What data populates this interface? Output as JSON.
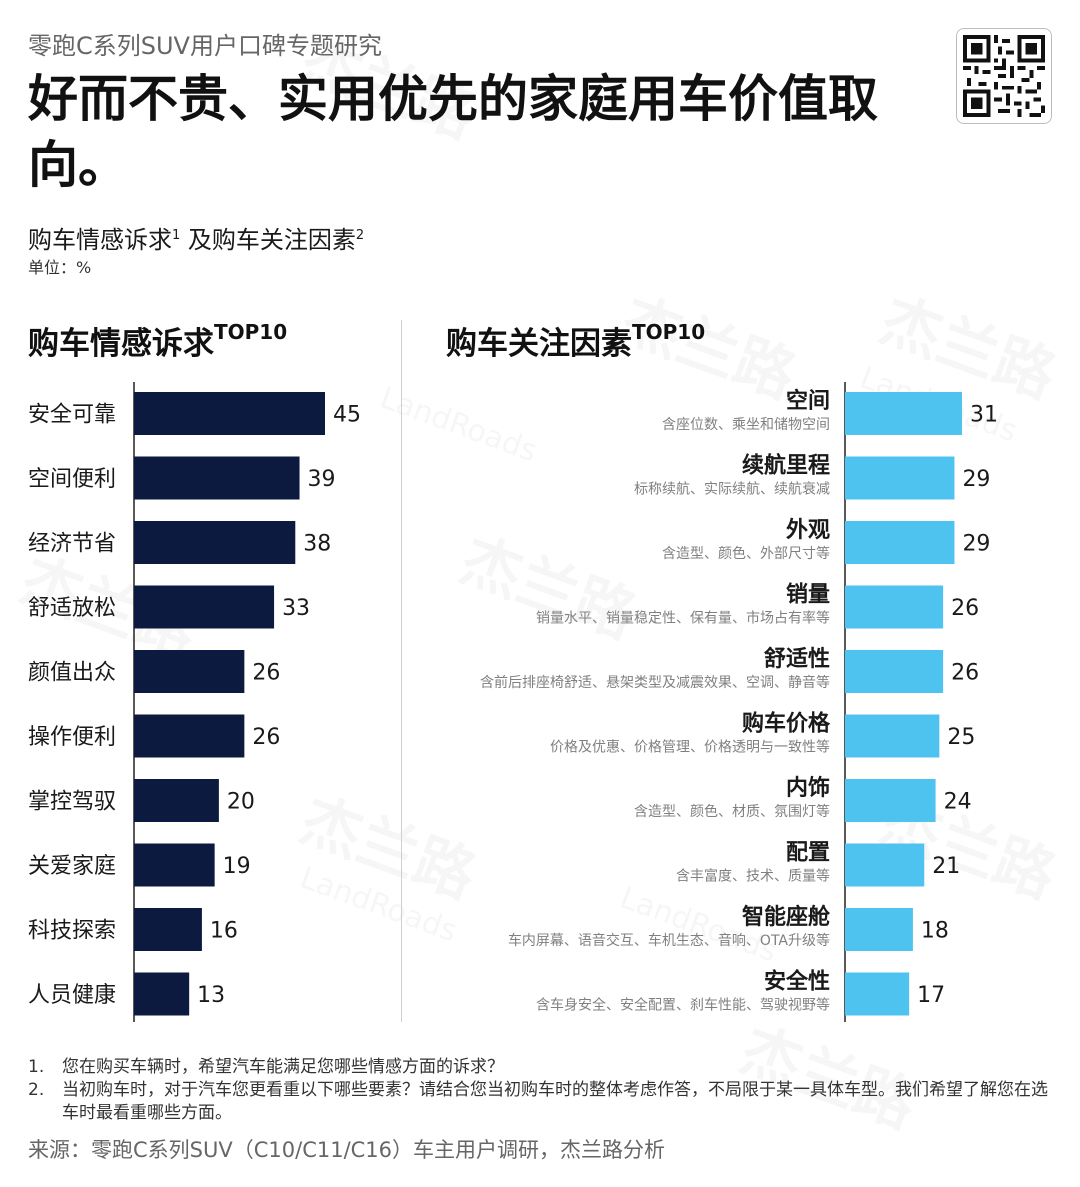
{
  "header": {
    "series_title": "零跑C系列SUV用户口碑专题研究",
    "headline": "好而不贵、实用优先的家庭用车价值取向。",
    "subtitle_main": "购车情感诉求",
    "subtitle_sup1": "1",
    "subtitle_mid": " 及购车关注因素",
    "subtitle_sup2": "2",
    "unit": "单位：%"
  },
  "watermark": {
    "brand": "杰兰路",
    "latin": "LandRoads"
  },
  "left_panel": {
    "title": "购车情感诉求",
    "title_sup": "TOP10"
  },
  "right_panel": {
    "title": "购车关注因素",
    "title_sup": "TOP10"
  },
  "chart_data": [
    {
      "type": "bar",
      "orientation": "horizontal",
      "title": "购车情感诉求TOP10",
      "categories": [
        "安全可靠",
        "空间便利",
        "经济节省",
        "舒适放松",
        "颜值出众",
        "操作便利",
        "掌控驾驭",
        "关爱家庭",
        "科技探索",
        "人员健康"
      ],
      "values": [
        45,
        39,
        38,
        33,
        26,
        26,
        20,
        19,
        16,
        13
      ],
      "color": "#0b1a3e"
    },
    {
      "type": "bar",
      "orientation": "horizontal",
      "title": "购车关注因素TOP10",
      "categories": [
        "空间",
        "续航里程",
        "外观",
        "销量",
        "舒适性",
        "购车价格",
        "内饰",
        "配置",
        "智能座舱",
        "安全性"
      ],
      "descriptions": [
        "含座位数、乘坐和储物空间",
        "标称续航、实际续航、续航衰减",
        "含造型、颜色、外部尺寸等",
        "销量水平、销量稳定性、保有量、市场占有率等",
        "含前后排座椅舒适、悬架类型及减震效果、空调、静音等",
        "价格及优惠、价格管理、价格透明与一致性等",
        "含造型、颜色、材质、氛围灯等",
        "含丰富度、技术、质量等",
        "车内屏幕、语音交互、车机生态、音响、OTA升级等",
        "含车身安全、安全配置、刹车性能、驾驶视野等"
      ],
      "values": [
        31,
        29,
        29,
        26,
        26,
        25,
        24,
        21,
        18,
        17
      ],
      "color": "#4fc3f0"
    }
  ],
  "footnotes": [
    {
      "num": "1.",
      "text": "您在购买车辆时，希望汽车能满足您哪些情感方面的诉求？"
    },
    {
      "num": "2.",
      "text": "当初购车时，对于汽车您更看重以下哪些要素？请结合您当初购车时的整体考虑作答，不局限于某一具体车型。我们希望了解您在选车时最看重哪些方面。"
    }
  ],
  "source": "来源：零跑C系列SUV（C10/C11/C16）车主用户调研，杰兰路分析",
  "qr_icon": "qr-code-icon"
}
